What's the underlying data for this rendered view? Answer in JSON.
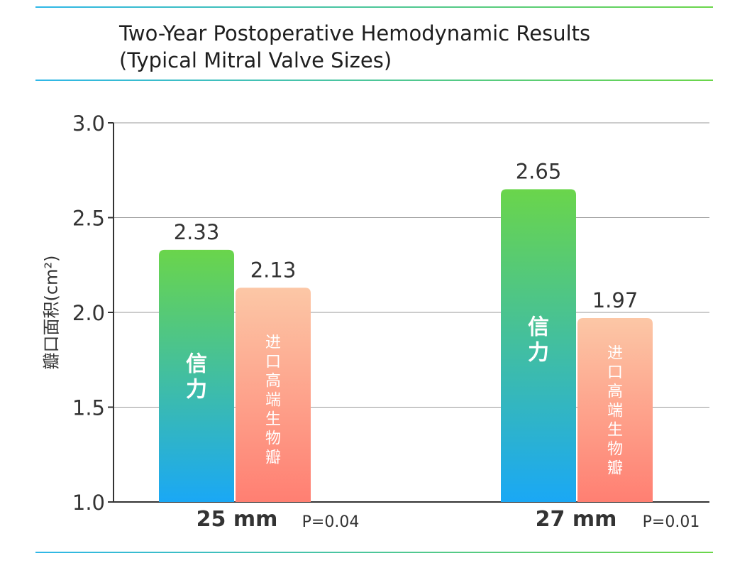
{
  "title_line1": "Two-Year Postoperative Hemodynamic Results",
  "title_line2": "(Typical Mitral Valve Sizes)",
  "chart_data": {
    "type": "bar",
    "title": "Two-Year Postoperative Hemodynamic Results (Typical Mitral Valve Sizes)",
    "ylabel": "瓣口面积(cm²)",
    "ylim": [
      1.0,
      3.0
    ],
    "yticks": [
      "1.0",
      "1.5",
      "2.0",
      "2.5",
      "3.0"
    ],
    "categories": [
      "25 mm",
      "27 mm"
    ],
    "p_values": [
      "P=0.04",
      "P=0.01"
    ],
    "series": [
      {
        "name": "信力",
        "values": [
          2.33,
          2.65
        ],
        "labels": [
          "2.33",
          "2.65"
        ],
        "color_top": "#6ad54b",
        "color_bottom": "#1aa8f5"
      },
      {
        "name": "进口高端生物瓣",
        "values": [
          2.13,
          1.97
        ],
        "labels": [
          "2.13",
          "1.97"
        ],
        "color_top": "#fcc7a6",
        "color_bottom": "#ff7f72"
      }
    ],
    "grid": true
  }
}
